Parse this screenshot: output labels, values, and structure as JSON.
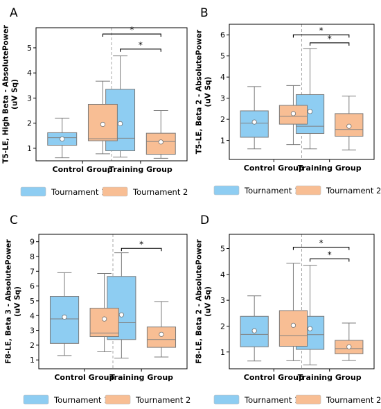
{
  "legend": {
    "items": [
      {
        "label": "Tournament 1",
        "color": "#8ecdf2"
      },
      {
        "label": "Tournament 2",
        "color": "#f8be94"
      }
    ]
  },
  "box_style": {
    "edge_color": "#7a7a7a",
    "mean_marker": "white-circle",
    "separator": "dashed-vertical"
  },
  "chart_data": [
    {
      "panel": "A",
      "type": "box",
      "ylabel": "T5-LE, High Beta - AbsolutePower\n(uV Sq)",
      "ylim": [
        0.5,
        5.8
      ],
      "yticks": [
        1,
        2,
        3,
        4,
        5
      ],
      "categories": [
        "Control Group",
        "Training Group"
      ],
      "series": [
        {
          "name": "Tournament 1",
          "boxes": [
            {
              "whislo": 0.62,
              "q1": 1.12,
              "med": 1.42,
              "q3": 1.62,
              "whishi": 2.2,
              "mean": 1.37
            },
            {
              "whislo": 0.65,
              "q1": 0.9,
              "med": 1.4,
              "q3": 3.35,
              "whishi": 4.68,
              "mean": 1.98
            }
          ]
        },
        {
          "name": "Tournament 2",
          "boxes": [
            {
              "whislo": 0.78,
              "q1": 1.3,
              "med": 1.38,
              "q3": 2.75,
              "whishi": 3.67,
              "mean": 1.95
            },
            {
              "whislo": 0.6,
              "q1": 0.76,
              "med": 1.27,
              "q3": 1.6,
              "whishi": 2.5,
              "mean": 1.25
            }
          ]
        }
      ],
      "significance": [
        {
          "from": "Control Group|Tournament 2",
          "to": "Training Group|Tournament 2",
          "y": 5.55,
          "label": "*"
        },
        {
          "from": "Training Group|Tournament 1",
          "to": "Training Group|Tournament 2",
          "y": 4.95,
          "label": "*"
        }
      ]
    },
    {
      "panel": "B",
      "type": "box",
      "ylabel": "T5-LE, Beta 2 - AbsolutePower\n(uV Sq)",
      "ylim": [
        0.1,
        6.5
      ],
      "yticks": [
        1,
        2,
        3,
        4,
        5,
        6
      ],
      "categories": [
        "Control Group",
        "Training Group"
      ],
      "series": [
        {
          "name": "Tournament 1",
          "boxes": [
            {
              "whislo": 0.6,
              "q1": 1.15,
              "med": 1.82,
              "q3": 2.4,
              "whishi": 3.55,
              "mean": 1.87
            },
            {
              "whislo": 0.6,
              "q1": 1.33,
              "med": 1.67,
              "q3": 3.17,
              "whishi": 5.35,
              "mean": 2.37
            }
          ]
        },
        {
          "name": "Tournament 2",
          "boxes": [
            {
              "whislo": 0.8,
              "q1": 1.77,
              "med": 2.15,
              "q3": 2.66,
              "whishi": 3.6,
              "mean": 2.27
            },
            {
              "whislo": 0.55,
              "q1": 1.2,
              "med": 1.52,
              "q3": 2.27,
              "whishi": 3.1,
              "mean": 1.67
            }
          ]
        }
      ],
      "significance": [
        {
          "from": "Control Group|Tournament 2",
          "to": "Training Group|Tournament 2",
          "y": 6.0,
          "label": "*"
        },
        {
          "from": "Training Group|Tournament 1",
          "to": "Training Group|Tournament 2",
          "y": 5.62,
          "label": "*"
        }
      ]
    },
    {
      "panel": "C",
      "type": "box",
      "ylabel": "F8-LE, Beta 3 - AbsolutePower\n(uV Sq)",
      "ylim": [
        0.4,
        9.5
      ],
      "yticks": [
        1,
        2,
        3,
        4,
        5,
        6,
        7,
        8,
        9
      ],
      "categories": [
        "Control Group",
        "Training Group"
      ],
      "series": [
        {
          "name": "Tournament 1",
          "boxes": [
            {
              "whislo": 1.3,
              "q1": 2.12,
              "med": 3.78,
              "q3": 5.3,
              "whishi": 6.9,
              "mean": 3.9
            },
            {
              "whislo": 1.12,
              "q1": 2.38,
              "med": 3.52,
              "q3": 6.65,
              "whishi": 8.25,
              "mean": 4.05
            }
          ]
        },
        {
          "name": "Tournament 2",
          "boxes": [
            {
              "whislo": 1.55,
              "q1": 2.58,
              "med": 2.82,
              "q3": 4.5,
              "whishi": 6.85,
              "mean": 3.77
            },
            {
              "whislo": 1.2,
              "q1": 1.85,
              "med": 2.38,
              "q3": 3.23,
              "whishi": 4.95,
              "mean": 2.73
            }
          ]
        }
      ],
      "significance": [
        {
          "from": "Training Group|Tournament 1",
          "to": "Training Group|Tournament 2",
          "y": 8.55,
          "label": "*"
        }
      ]
    },
    {
      "panel": "D",
      "type": "box",
      "ylabel": "F8-LE, Beta 2 - AbsolutePower\n(uV Sq)",
      "ylim": [
        0.35,
        5.55
      ],
      "yticks": [
        1,
        2,
        3,
        4,
        5
      ],
      "categories": [
        "Control Group",
        "Training Group"
      ],
      "series": [
        {
          "name": "Tournament 1",
          "boxes": [
            {
              "whislo": 0.65,
              "q1": 1.2,
              "med": 1.68,
              "q3": 2.38,
              "whishi": 3.17,
              "mean": 1.82
            },
            {
              "whislo": 0.5,
              "q1": 1.1,
              "med": 1.67,
              "q3": 2.38,
              "whishi": 4.35,
              "mean": 1.9
            }
          ]
        },
        {
          "name": "Tournament 2",
          "boxes": [
            {
              "whislo": 0.66,
              "q1": 1.22,
              "med": 1.63,
              "q3": 2.6,
              "whishi": 4.43,
              "mean": 2.03
            },
            {
              "whislo": 0.67,
              "q1": 0.93,
              "med": 1.13,
              "q3": 1.45,
              "whishi": 2.12,
              "mean": 1.2
            }
          ]
        }
      ],
      "significance": [
        {
          "from": "Control Group|Tournament 2",
          "to": "Training Group|Tournament 2",
          "y": 5.05,
          "label": "*"
        },
        {
          "from": "Training Group|Tournament 1",
          "to": "Training Group|Tournament 2",
          "y": 4.6,
          "label": "*"
        }
      ]
    }
  ]
}
